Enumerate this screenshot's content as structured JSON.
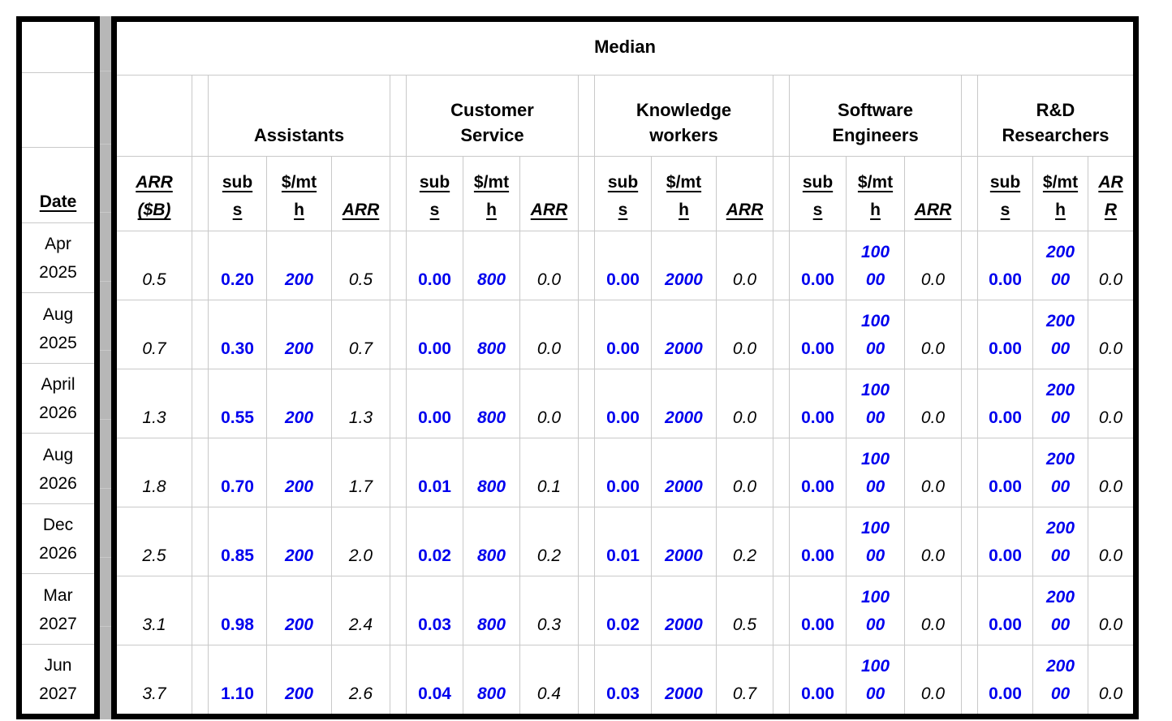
{
  "table": {
    "title": "Median",
    "corner": {
      "date_header": "Date",
      "arr_b_header": "ARR\n($B)"
    },
    "groups": [
      {
        "name": "Assistants",
        "headers": [
          "sub\ns",
          "$/mt\nh",
          "ARR"
        ]
      },
      {
        "name": "Customer\nService",
        "headers": [
          "sub\ns",
          "$/mt\nh",
          "ARR"
        ]
      },
      {
        "name": "Knowledge\nworkers",
        "headers": [
          "sub\ns",
          "$/mt\nh",
          "ARR"
        ]
      },
      {
        "name": "Software\nEngineers",
        "headers": [
          "sub\ns",
          "$/mt\nh",
          "ARR"
        ]
      },
      {
        "name": "R&D\nResearchers",
        "headers": [
          "sub\ns",
          "$/mt\nh",
          "AR\nR"
        ]
      }
    ],
    "rows": [
      {
        "date": "Apr\n2025",
        "arr_b": "0.5",
        "groups": [
          [
            "0.20",
            "200",
            "0.5"
          ],
          [
            "0.00",
            "800",
            "0.0"
          ],
          [
            "0.00",
            "2000",
            "0.0"
          ],
          [
            "0.00",
            "100\n00",
            "0.0"
          ],
          [
            "0.00",
            "200\n00",
            "0.0"
          ]
        ]
      },
      {
        "date": "Aug\n2025",
        "arr_b": "0.7",
        "groups": [
          [
            "0.30",
            "200",
            "0.7"
          ],
          [
            "0.00",
            "800",
            "0.0"
          ],
          [
            "0.00",
            "2000",
            "0.0"
          ],
          [
            "0.00",
            "100\n00",
            "0.0"
          ],
          [
            "0.00",
            "200\n00",
            "0.0"
          ]
        ]
      },
      {
        "date": "April\n2026",
        "arr_b": "1.3",
        "groups": [
          [
            "0.55",
            "200",
            "1.3"
          ],
          [
            "0.00",
            "800",
            "0.0"
          ],
          [
            "0.00",
            "2000",
            "0.0"
          ],
          [
            "0.00",
            "100\n00",
            "0.0"
          ],
          [
            "0.00",
            "200\n00",
            "0.0"
          ]
        ]
      },
      {
        "date": "Aug\n2026",
        "arr_b": "1.8",
        "groups": [
          [
            "0.70",
            "200",
            "1.7"
          ],
          [
            "0.01",
            "800",
            "0.1"
          ],
          [
            "0.00",
            "2000",
            "0.0"
          ],
          [
            "0.00",
            "100\n00",
            "0.0"
          ],
          [
            "0.00",
            "200\n00",
            "0.0"
          ]
        ]
      },
      {
        "date": "Dec\n2026",
        "arr_b": "2.5",
        "groups": [
          [
            "0.85",
            "200",
            "2.0"
          ],
          [
            "0.02",
            "800",
            "0.2"
          ],
          [
            "0.01",
            "2000",
            "0.2"
          ],
          [
            "0.00",
            "100\n00",
            "0.0"
          ],
          [
            "0.00",
            "200\n00",
            "0.0"
          ]
        ]
      },
      {
        "date": "Mar\n2027",
        "arr_b": "3.1",
        "groups": [
          [
            "0.98",
            "200",
            "2.4"
          ],
          [
            "0.03",
            "800",
            "0.3"
          ],
          [
            "0.02",
            "2000",
            "0.5"
          ],
          [
            "0.00",
            "100\n00",
            "0.0"
          ],
          [
            "0.00",
            "200\n00",
            "0.0"
          ]
        ]
      },
      {
        "date": "Jun\n2027",
        "arr_b": "3.7",
        "groups": [
          [
            "1.10",
            "200",
            "2.6"
          ],
          [
            "0.04",
            "800",
            "0.4"
          ],
          [
            "0.03",
            "2000",
            "0.7"
          ],
          [
            "0.00",
            "100\n00",
            "0.0"
          ],
          [
            "0.00",
            "200\n00",
            "0.0"
          ]
        ]
      }
    ]
  },
  "colors": {
    "input_blue": "#0000ee",
    "text_black": "#000000",
    "gridline_gray": "#c9c9c9",
    "spacer_gray": "#b7b7b7",
    "frame_black": "#000000"
  }
}
